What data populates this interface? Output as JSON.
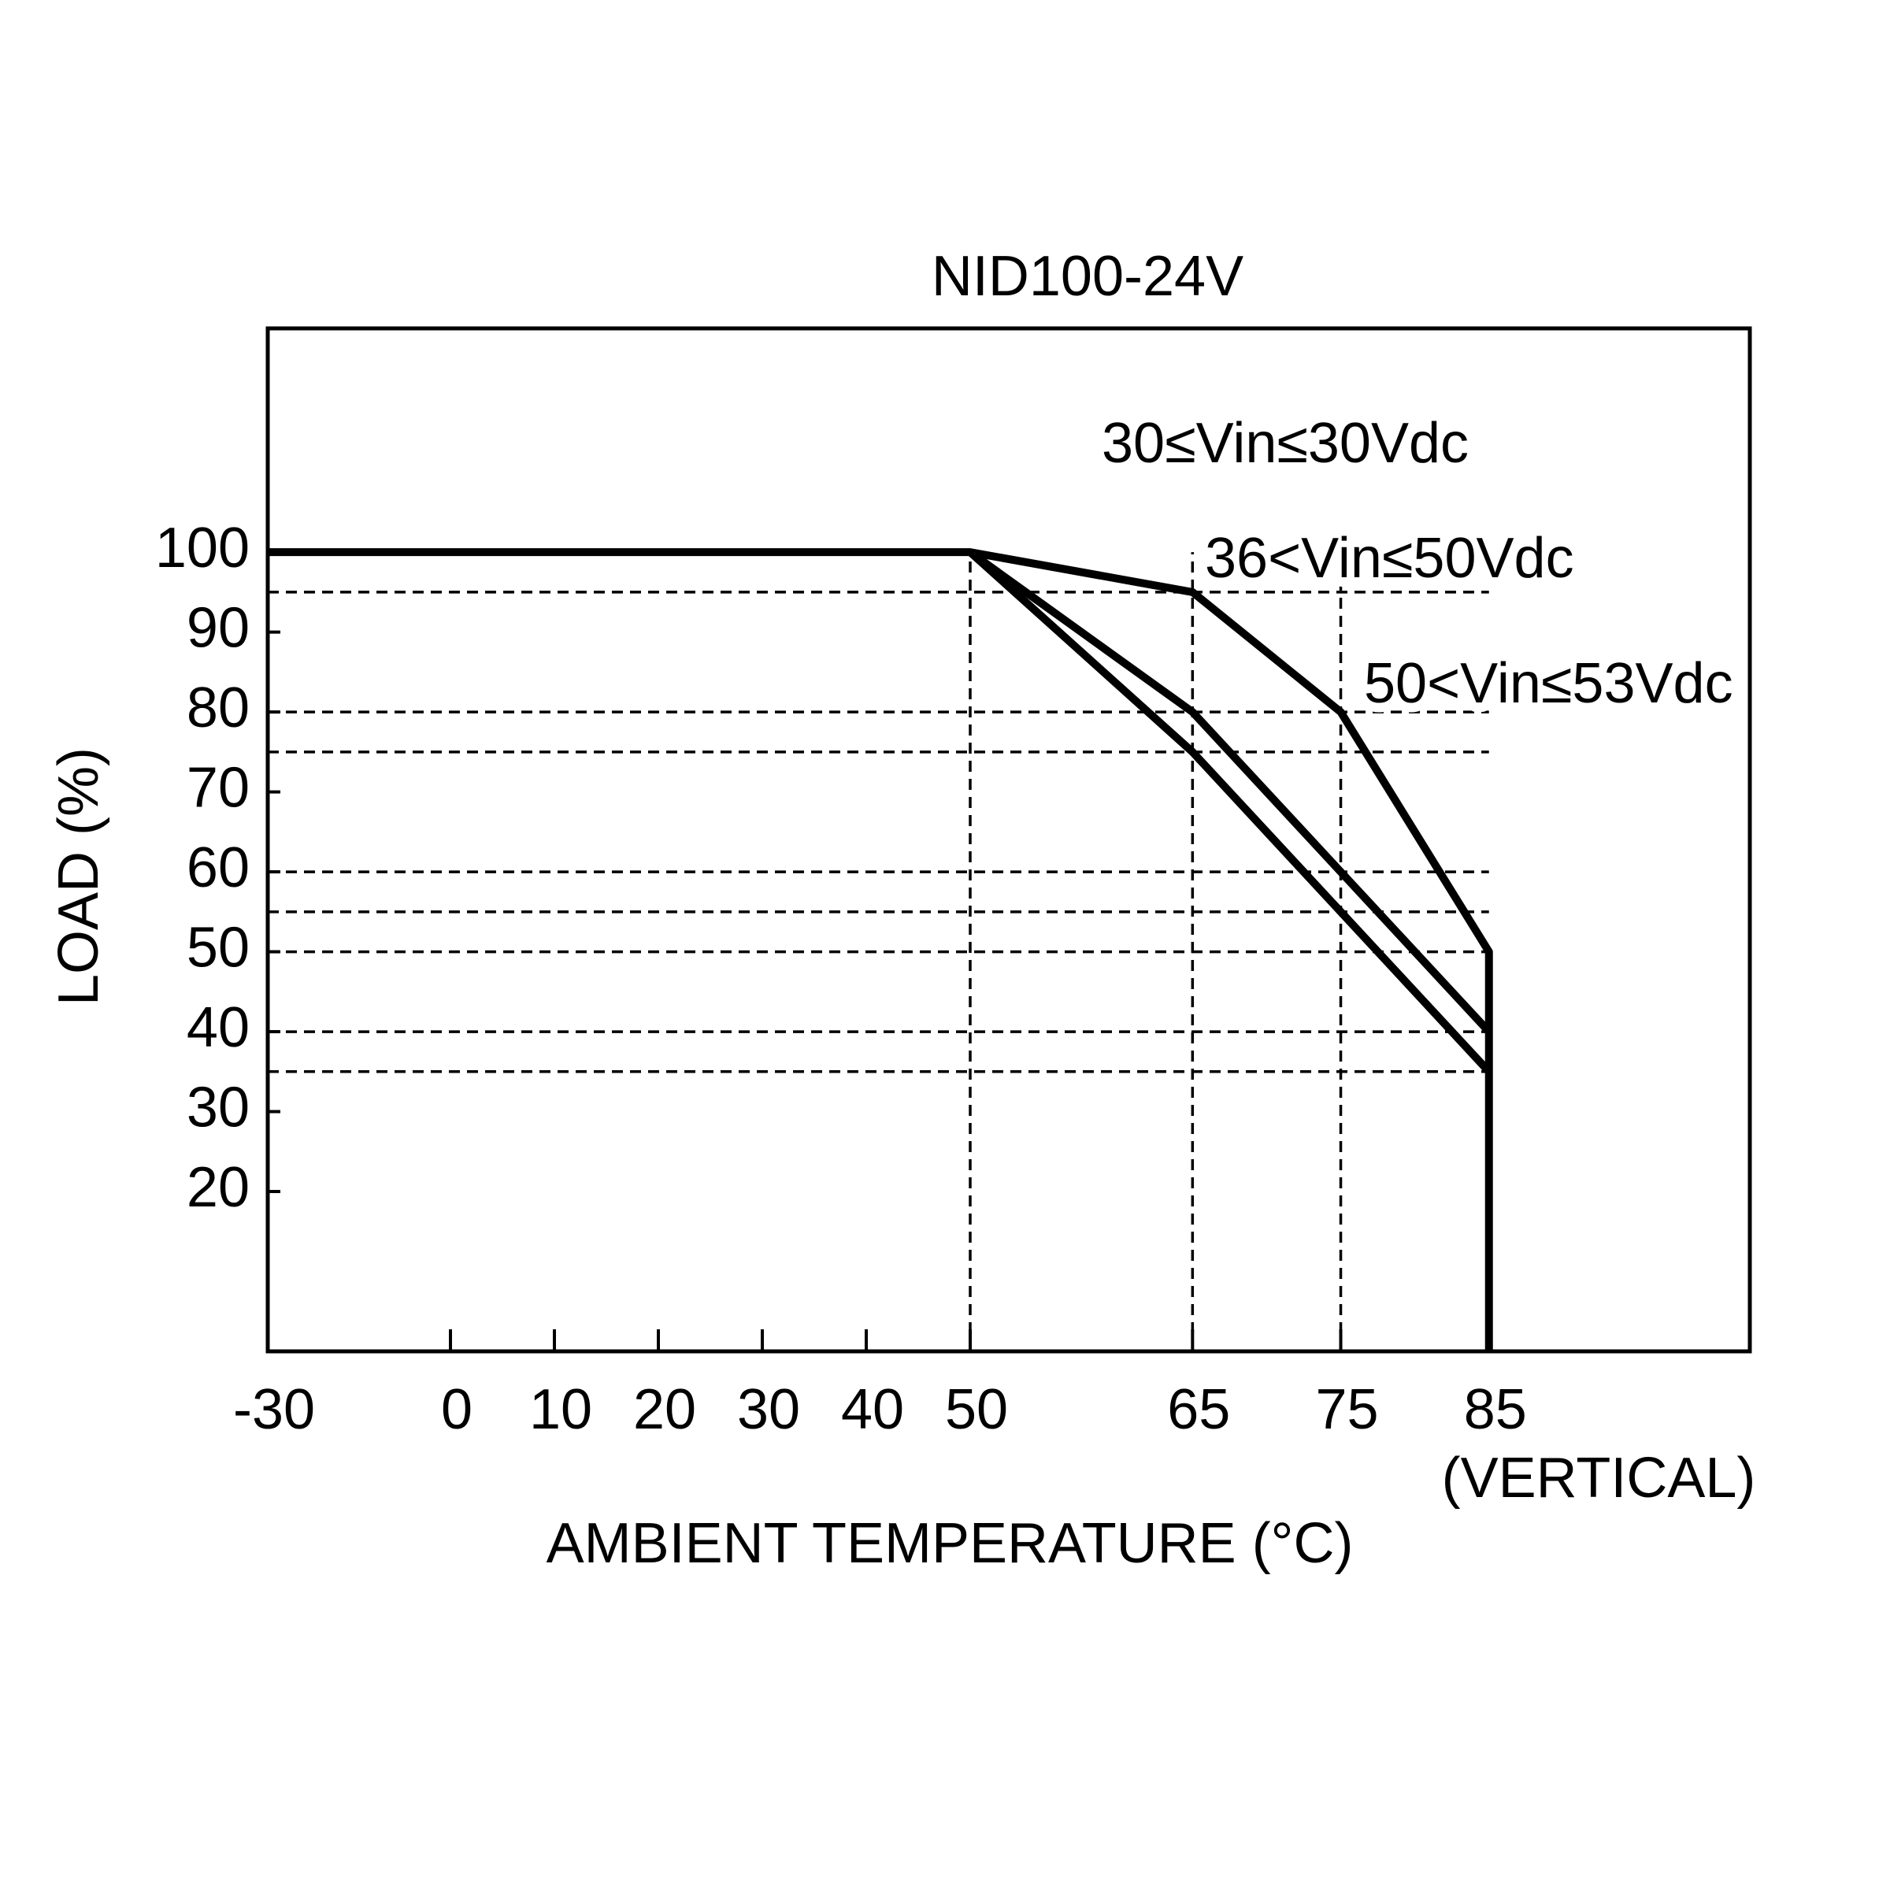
{
  "chart_data": {
    "type": "line",
    "title": "NID100-24V",
    "x_label": "AMBIENT TEMPERATURE (°C)",
    "y_label": "LOAD (%)",
    "annotation": "(VERTICAL)",
    "xlim": [
      -30,
      102.6
    ],
    "ylim": [
      0,
      128
    ],
    "xticks": [
      -30,
      0,
      10,
      20,
      30,
      40,
      50,
      65,
      75,
      85
    ],
    "yticks": [
      20,
      30,
      40,
      50,
      60,
      70,
      80,
      90,
      100
    ],
    "hlines": [
      95,
      80,
      75,
      60,
      55,
      50,
      40,
      35
    ],
    "vlines": [
      50,
      65,
      75
    ],
    "series": [
      {
        "name": "30≤Vin≤30Vdc",
        "color": "#000000",
        "x": [
          -30,
          50,
          65,
          75,
          85,
          85
        ],
        "values": [
          100,
          100,
          95,
          80,
          50,
          0
        ]
      },
      {
        "name": "36<Vin≤50Vdc",
        "color": "#000000",
        "x": [
          50,
          65,
          75,
          85
        ],
        "values": [
          100,
          80,
          60,
          40
        ]
      },
      {
        "name": "50<Vin≤53Vdc",
        "color": "#000000",
        "x": [
          50,
          65,
          75,
          85
        ],
        "values": [
          100,
          75,
          55,
          35
        ]
      }
    ]
  }
}
